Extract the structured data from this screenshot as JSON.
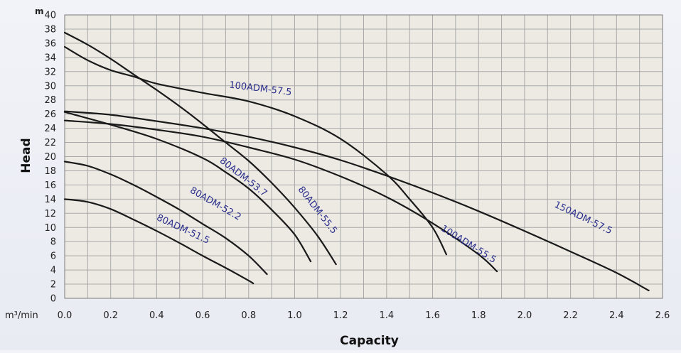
{
  "chart_data": {
    "type": "line",
    "xlabel": "Capacity",
    "ylabel": "Head",
    "x_unit": "m³/min",
    "y_unit": "m",
    "xlim": [
      0,
      2.6
    ],
    "ylim": [
      0,
      40
    ],
    "x_ticks": [
      0.0,
      0.2,
      0.4,
      0.6,
      0.8,
      1.0,
      1.2,
      1.4,
      1.6,
      1.8,
      2.0,
      2.2,
      2.4,
      2.6
    ],
    "y_ticks": [
      0,
      2,
      4,
      6,
      8,
      10,
      12,
      14,
      16,
      18,
      20,
      22,
      24,
      26,
      28,
      30,
      32,
      34,
      36,
      38,
      40
    ],
    "x_minor_step": 0.1,
    "grid": true,
    "series": [
      {
        "name": "80ADM-51.5",
        "x": [
          0.0,
          0.1,
          0.2,
          0.3,
          0.4,
          0.5,
          0.6,
          0.7,
          0.8,
          0.82
        ],
        "y": [
          14.0,
          13.6,
          12.6,
          11.1,
          9.5,
          7.8,
          6.0,
          4.3,
          2.5,
          2.1
        ]
      },
      {
        "name": "80ADM-52.2",
        "x": [
          0.0,
          0.1,
          0.2,
          0.3,
          0.4,
          0.5,
          0.6,
          0.7,
          0.8,
          0.88
        ],
        "y": [
          19.3,
          18.7,
          17.5,
          16.0,
          14.3,
          12.5,
          10.5,
          8.5,
          6.0,
          3.4
        ]
      },
      {
        "name": "80ADM-53.7",
        "x": [
          0.0,
          0.2,
          0.4,
          0.6,
          0.7,
          0.8,
          0.9,
          1.0,
          1.07
        ],
        "y": [
          26.3,
          24.5,
          22.5,
          19.8,
          17.8,
          15.5,
          12.5,
          9.0,
          5.2
        ]
      },
      {
        "name": "80ADM-55.5",
        "x": [
          0.0,
          0.1,
          0.2,
          0.3,
          0.4,
          0.5,
          0.6,
          0.7,
          0.8,
          0.9,
          1.0,
          1.1,
          1.18
        ],
        "y": [
          37.5,
          35.8,
          33.8,
          31.6,
          29.4,
          27.1,
          24.6,
          22.0,
          19.4,
          16.3,
          12.8,
          8.8,
          4.8
        ]
      },
      {
        "name": "100ADM-57.5",
        "x": [
          0.0,
          0.1,
          0.2,
          0.3,
          0.4,
          0.6,
          0.8,
          1.0,
          1.2,
          1.4,
          1.5,
          1.6,
          1.66
        ],
        "y": [
          35.5,
          33.6,
          32.2,
          31.3,
          30.3,
          29.0,
          27.8,
          25.7,
          22.5,
          17.5,
          14.0,
          10.0,
          6.2
        ]
      },
      {
        "name": "100ADM-55.5",
        "x": [
          0.0,
          0.2,
          0.4,
          0.6,
          0.8,
          1.0,
          1.2,
          1.4,
          1.6,
          1.8,
          1.88
        ],
        "y": [
          25.1,
          24.6,
          23.8,
          22.8,
          21.3,
          19.6,
          17.2,
          14.3,
          10.6,
          6.2,
          3.8
        ]
      },
      {
        "name": "150ADM-57.5",
        "x": [
          0.0,
          0.2,
          0.4,
          0.6,
          0.8,
          1.0,
          1.2,
          1.4,
          1.6,
          1.8,
          2.0,
          2.2,
          2.4,
          2.54
        ],
        "y": [
          26.4,
          25.9,
          25.0,
          24.0,
          22.8,
          21.3,
          19.5,
          17.3,
          14.9,
          12.3,
          9.5,
          6.6,
          3.6,
          1.1
        ]
      }
    ],
    "labels": [
      {
        "series": "100ADM-57.5",
        "text": "100ADM-57.5",
        "x": 0.85,
        "y": 29.2,
        "angle": 7
      },
      {
        "series": "80ADM-53.7",
        "text": "80ADM-53.7",
        "x": 0.77,
        "y": 16.8,
        "angle": 38
      },
      {
        "series": "80ADM-52.2",
        "text": "80ADM-52.2",
        "x": 0.65,
        "y": 13.0,
        "angle": 30
      },
      {
        "series": "80ADM-51.5",
        "text": "80ADM-51.5",
        "x": 0.51,
        "y": 9.4,
        "angle": 25
      },
      {
        "series": "80ADM-55.5",
        "text": "80ADM-55.5",
        "x": 1.09,
        "y": 12.2,
        "angle": 52
      },
      {
        "series": "100ADM-55.5",
        "text": "100ADM-55.5",
        "x": 1.75,
        "y": 7.3,
        "angle": 32
      },
      {
        "series": "150ADM-57.5",
        "text": "150ADM-57.5",
        "x": 2.25,
        "y": 11.0,
        "angle": 26
      }
    ],
    "colors": {
      "line": "#1a1a1a",
      "label": "#2b2e8c",
      "plot_bg": "#eceae3",
      "grid": "#a9a9a9"
    }
  }
}
